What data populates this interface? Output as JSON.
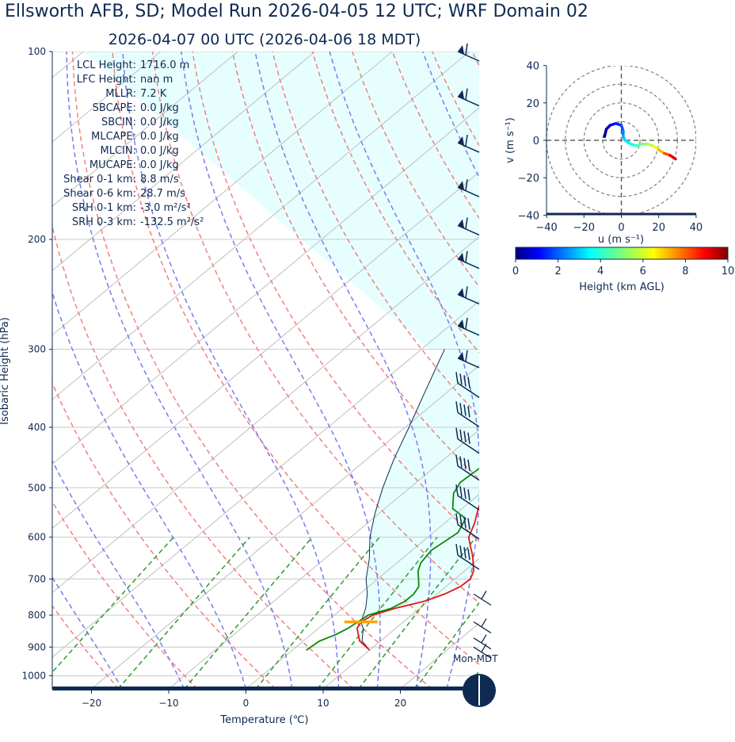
{
  "title": "Ellsworth AFB, SD; Model Run 2026-04-05 12 UTC; WRF Domain 02",
  "subtitle": "2026-04-07 00 UTC  (2026-04-06 18 MDT)",
  "colors": {
    "text": "#0e2a52",
    "temperature": "#e8160e",
    "dewpoint": "#0a8a0a",
    "parcel": "#0e2a52",
    "cape_fill": "#e6fffe",
    "dry_adiabat": "#f08080",
    "moist_adiabat": "#7b7bf0",
    "mixing_ratio": "#2e9a2e",
    "isotherm": "#bfbfbf",
    "lcl_marker": "#ffa500"
  },
  "stats": [
    {
      "label": "LCL Height:",
      "value": "1716.0 m"
    },
    {
      "label": "LFC Height:",
      "value": "nan m"
    },
    {
      "label": "MLLR:",
      "value": "7.2 K"
    },
    {
      "label": "SBCAPE:",
      "value": "0.0 J/kg"
    },
    {
      "label": "SBCIN:",
      "value": "0.0 J/kg"
    },
    {
      "label": "MLCAPE:",
      "value": "0.0 J/kg"
    },
    {
      "label": "MLCIN:",
      "value": "0.0 J/kg"
    },
    {
      "label": "MUCAPE:",
      "value": "0.0 J/kg"
    },
    {
      "label": "Shear 0-1 km:",
      "value": "8.8 m/s"
    },
    {
      "label": "Shear 0-6 km:",
      "value": "28.7 m/s"
    },
    {
      "label": "SRH 0-1 km:",
      "value": "-3.0 m²/s²"
    },
    {
      "label": "SRH 0-3 km:",
      "value": "-132.5 m²/s²"
    }
  ],
  "sky_label": "Mon-MDT",
  "chart_data": [
    {
      "type": "line",
      "name": "skew-t",
      "xlabel": "Temperature (℃)",
      "ylabel": "Isobaric Height (hPa)",
      "log_y": true,
      "ylim": [
        1050,
        100
      ],
      "xlim": [
        -25,
        30
      ],
      "xticks": [
        -20,
        -10,
        0,
        10,
        20
      ],
      "yticks": [
        100,
        200,
        300,
        400,
        500,
        600,
        700,
        800,
        900,
        1000
      ],
      "series": [
        {
          "name": "temperature",
          "points": [
            [
              910,
              10.0
            ],
            [
              880,
              7.3
            ],
            [
              840,
              5.0
            ],
            [
              820,
              4.5
            ],
            [
              800,
              5.0
            ],
            [
              780,
              6.8
            ],
            [
              760,
              9.5
            ],
            [
              740,
              11.0
            ],
            [
              720,
              11.9
            ],
            [
              700,
              12.0
            ],
            [
              680,
              11.2
            ],
            [
              660,
              9.9
            ],
            [
              640,
              8.5
            ],
            [
              620,
              6.9
            ],
            [
              600,
              5.3
            ],
            [
              570,
              3.9
            ],
            [
              540,
              2.1
            ],
            [
              500,
              0.0
            ],
            [
              450,
              -2.6
            ],
            [
              400,
              -5.8
            ],
            [
              350,
              -8.7
            ],
            [
              300,
              -12.2
            ],
            [
              250,
              -15.9
            ],
            [
              220,
              -16.3
            ],
            [
              200,
              -14.2
            ],
            [
              180,
              -11.5
            ],
            [
              160,
              -2.0
            ],
            [
              140,
              7.0
            ],
            [
              120,
              12.0
            ],
            [
              100,
              15.0
            ]
          ]
        },
        {
          "name": "dewpoint",
          "points": [
            [
              910,
              1.8
            ],
            [
              880,
              2.1
            ],
            [
              860,
              3.2
            ],
            [
              840,
              3.8
            ],
            [
              800,
              4.4
            ],
            [
              780,
              6.3
            ],
            [
              760,
              7.0
            ],
            [
              740,
              7.0
            ],
            [
              720,
              6.5
            ],
            [
              700,
              5.3
            ],
            [
              680,
              4.0
            ],
            [
              660,
              3.1
            ],
            [
              630,
              2.5
            ],
            [
              590,
              3.2
            ],
            [
              560,
              2.0
            ],
            [
              540,
              -1.2
            ],
            [
              510,
              -3.5
            ],
            [
              490,
              -4.3
            ],
            [
              450,
              -3.8
            ],
            [
              400,
              -4.3
            ],
            [
              350,
              -7.2
            ],
            [
              300,
              -10.5
            ],
            [
              250,
              -11.7
            ],
            [
              220,
              -11.7
            ],
            [
              200,
              -11.1
            ],
            [
              180,
              -11.3
            ],
            [
              165,
              -13.0
            ],
            [
              150,
              -11.5
            ],
            [
              120,
              -6.0
            ],
            [
              100,
              2.0
            ]
          ]
        },
        {
          "name": "parcel",
          "points": [
            [
              910,
              10.0
            ],
            [
              880,
              7.6
            ],
            [
              840,
              5.8
            ],
            [
              820,
              4.5
            ],
            [
              780,
              3.0
            ],
            [
              740,
              1.0
            ],
            [
              700,
              -1.5
            ],
            [
              650,
              -4.2
            ],
            [
              600,
              -7.5
            ],
            [
              550,
              -10.5
            ],
            [
              500,
              -13.5
            ],
            [
              450,
              -16.5
            ],
            [
              400,
              -19.5
            ],
            [
              350,
              -23.0
            ],
            [
              300,
              -27.0
            ]
          ]
        }
      ],
      "lcl": {
        "pressure": 820,
        "temperature": 4.5
      },
      "wind_barbs": [
        {
          "p": 100,
          "kind": "pennant"
        },
        {
          "p": 118,
          "kind": "pennant"
        },
        {
          "p": 140,
          "kind": "pennant"
        },
        {
          "p": 165,
          "kind": "pennant"
        },
        {
          "p": 190,
          "kind": "pennant"
        },
        {
          "p": 215,
          "kind": "pennant"
        },
        {
          "p": 245,
          "kind": "pennant"
        },
        {
          "p": 275,
          "kind": "pennant"
        },
        {
          "p": 310,
          "kind": "pennant"
        },
        {
          "p": 350,
          "kind": "barbs"
        },
        {
          "p": 390,
          "kind": "barbs"
        },
        {
          "p": 430,
          "kind": "barbs"
        },
        {
          "p": 475,
          "kind": "barbs"
        },
        {
          "p": 530,
          "kind": "barbs"
        },
        {
          "p": 590,
          "kind": "barbs"
        },
        {
          "p": 660,
          "kind": "barbs"
        },
        {
          "p": 740,
          "kind": "light"
        },
        {
          "p": 820,
          "kind": "light"
        },
        {
          "p": 870,
          "kind": "light"
        },
        {
          "p": 900,
          "kind": "light"
        }
      ]
    },
    {
      "type": "scatter",
      "name": "hodograph",
      "xlabel": "u (m s⁻¹)",
      "ylabel": "v (m s⁻¹)",
      "xlim": [
        -40,
        40
      ],
      "ylim": [
        -40,
        40
      ],
      "xticks": [
        -40,
        -20,
        0,
        20,
        40
      ],
      "yticks": [
        -40,
        -20,
        0,
        20,
        40
      ],
      "rings": [
        10,
        20,
        30,
        40
      ],
      "points": [
        [
          -9,
          2
        ],
        [
          -8,
          6
        ],
        [
          -6,
          8
        ],
        [
          -3,
          9
        ],
        [
          0,
          8
        ],
        [
          1,
          5
        ],
        [
          1,
          2
        ],
        [
          2,
          0
        ],
        [
          5,
          -2
        ],
        [
          8,
          -3
        ],
        [
          11,
          -2
        ],
        [
          14,
          -2
        ],
        [
          17,
          -3
        ],
        [
          20,
          -5
        ],
        [
          23,
          -7
        ],
        [
          26,
          -8
        ],
        [
          29,
          -10
        ]
      ],
      "heights_km": [
        0.0,
        0.5,
        1.0,
        1.5,
        2.0,
        2.5,
        3.0,
        3.5,
        4.0,
        4.5,
        5.0,
        5.5,
        6.0,
        7.0,
        8.0,
        9.0,
        10.0
      ],
      "colorbar": {
        "label": "Height (km AGL)",
        "min": 0,
        "max": 10,
        "ticks": [
          0,
          2,
          4,
          6,
          8,
          10
        ]
      }
    }
  ]
}
